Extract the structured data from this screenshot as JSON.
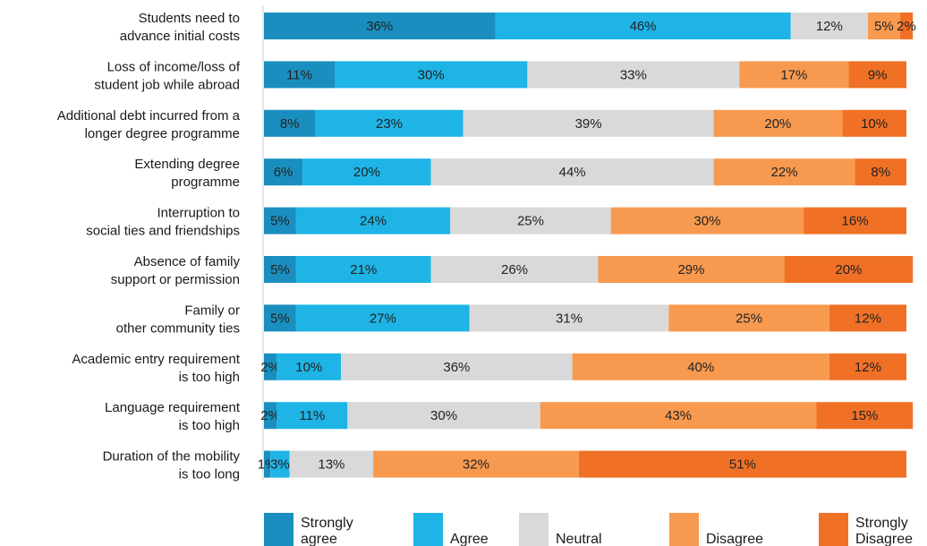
{
  "chart_data": {
    "type": "bar",
    "orientation": "horizontal",
    "stacked": true,
    "normalized_percent": true,
    "xlim": [
      0,
      100
    ],
    "grid": false,
    "legend_position": "bottom",
    "title": "",
    "xlabel": "",
    "ylabel": "",
    "categories": [
      "Students need to advance initial costs",
      "Loss of income/loss of student job while abroad",
      "Additional debt incurred from a longer degree programme",
      "Extending degree programme",
      "Interruption to social ties and friendships",
      "Absence of family support or permission",
      "Family or other community ties",
      "Academic entry requirement is too high",
      "Language requirement is too high",
      "Duration of the mobility is too long"
    ],
    "category_lines": [
      [
        "Students need to",
        "advance initial costs"
      ],
      [
        "Loss of income/loss of",
        "student job while abroad"
      ],
      [
        "Additional debt incurred from a",
        "longer degree programme"
      ],
      [
        "Extending degree",
        "programme"
      ],
      [
        "Interruption to",
        "social ties and friendships"
      ],
      [
        "Absence of family",
        "support or permission"
      ],
      [
        "Family or",
        "other community ties"
      ],
      [
        "Academic entry requirement",
        "is too high"
      ],
      [
        "Language requirement",
        "is too high"
      ],
      [
        "Duration of the mobility",
        "is too long"
      ]
    ],
    "series": [
      {
        "name": "Strongly agree",
        "legend_lines": [
          "Strongly",
          "agree"
        ],
        "color": "#1a8fbf",
        "values": [
          36,
          11,
          8,
          6,
          5,
          5,
          5,
          2,
          2,
          1
        ]
      },
      {
        "name": "Agree",
        "legend_lines": [
          "Agree"
        ],
        "color": "#1eb4e6",
        "values": [
          46,
          30,
          23,
          20,
          24,
          21,
          27,
          10,
          11,
          3
        ]
      },
      {
        "name": "Neutral",
        "legend_lines": [
          "Neutral"
        ],
        "color": "#d9d9d9",
        "values": [
          12,
          33,
          39,
          44,
          25,
          26,
          31,
          36,
          30,
          13
        ]
      },
      {
        "name": "Disagree",
        "legend_lines": [
          "Disagree"
        ],
        "color": "#f79a50",
        "values": [
          5,
          17,
          20,
          22,
          30,
          29,
          25,
          40,
          43,
          32
        ]
      },
      {
        "name": "Strongly disagree",
        "legend_lines": [
          "Strongly",
          "Disagree"
        ],
        "color": "#f07125",
        "values": [
          2,
          9,
          10,
          8,
          16,
          20,
          12,
          12,
          15,
          51
        ]
      }
    ],
    "value_labels": [
      [
        "36%",
        "46%",
        "12%",
        "5%",
        "2%"
      ],
      [
        "11%",
        "30%",
        "33%",
        "17%",
        "9%"
      ],
      [
        "8%",
        "23%",
        "39%",
        "20%",
        "10%"
      ],
      [
        "6%",
        "20%",
        "44%",
        "22%",
        "8%"
      ],
      [
        "5%",
        "24%",
        "25%",
        "30%",
        "16%"
      ],
      [
        "5%",
        "21%",
        "26%",
        "29%",
        "20%"
      ],
      [
        "5%",
        "27%",
        "31%",
        "25%",
        "12%"
      ],
      [
        "2%",
        "10%",
        "36%",
        "40%",
        "12%"
      ],
      [
        "2%",
        "11%",
        "30%",
        "43%",
        "15%"
      ],
      [
        "1%",
        "3%",
        "13%",
        "32%",
        "51%"
      ]
    ]
  }
}
